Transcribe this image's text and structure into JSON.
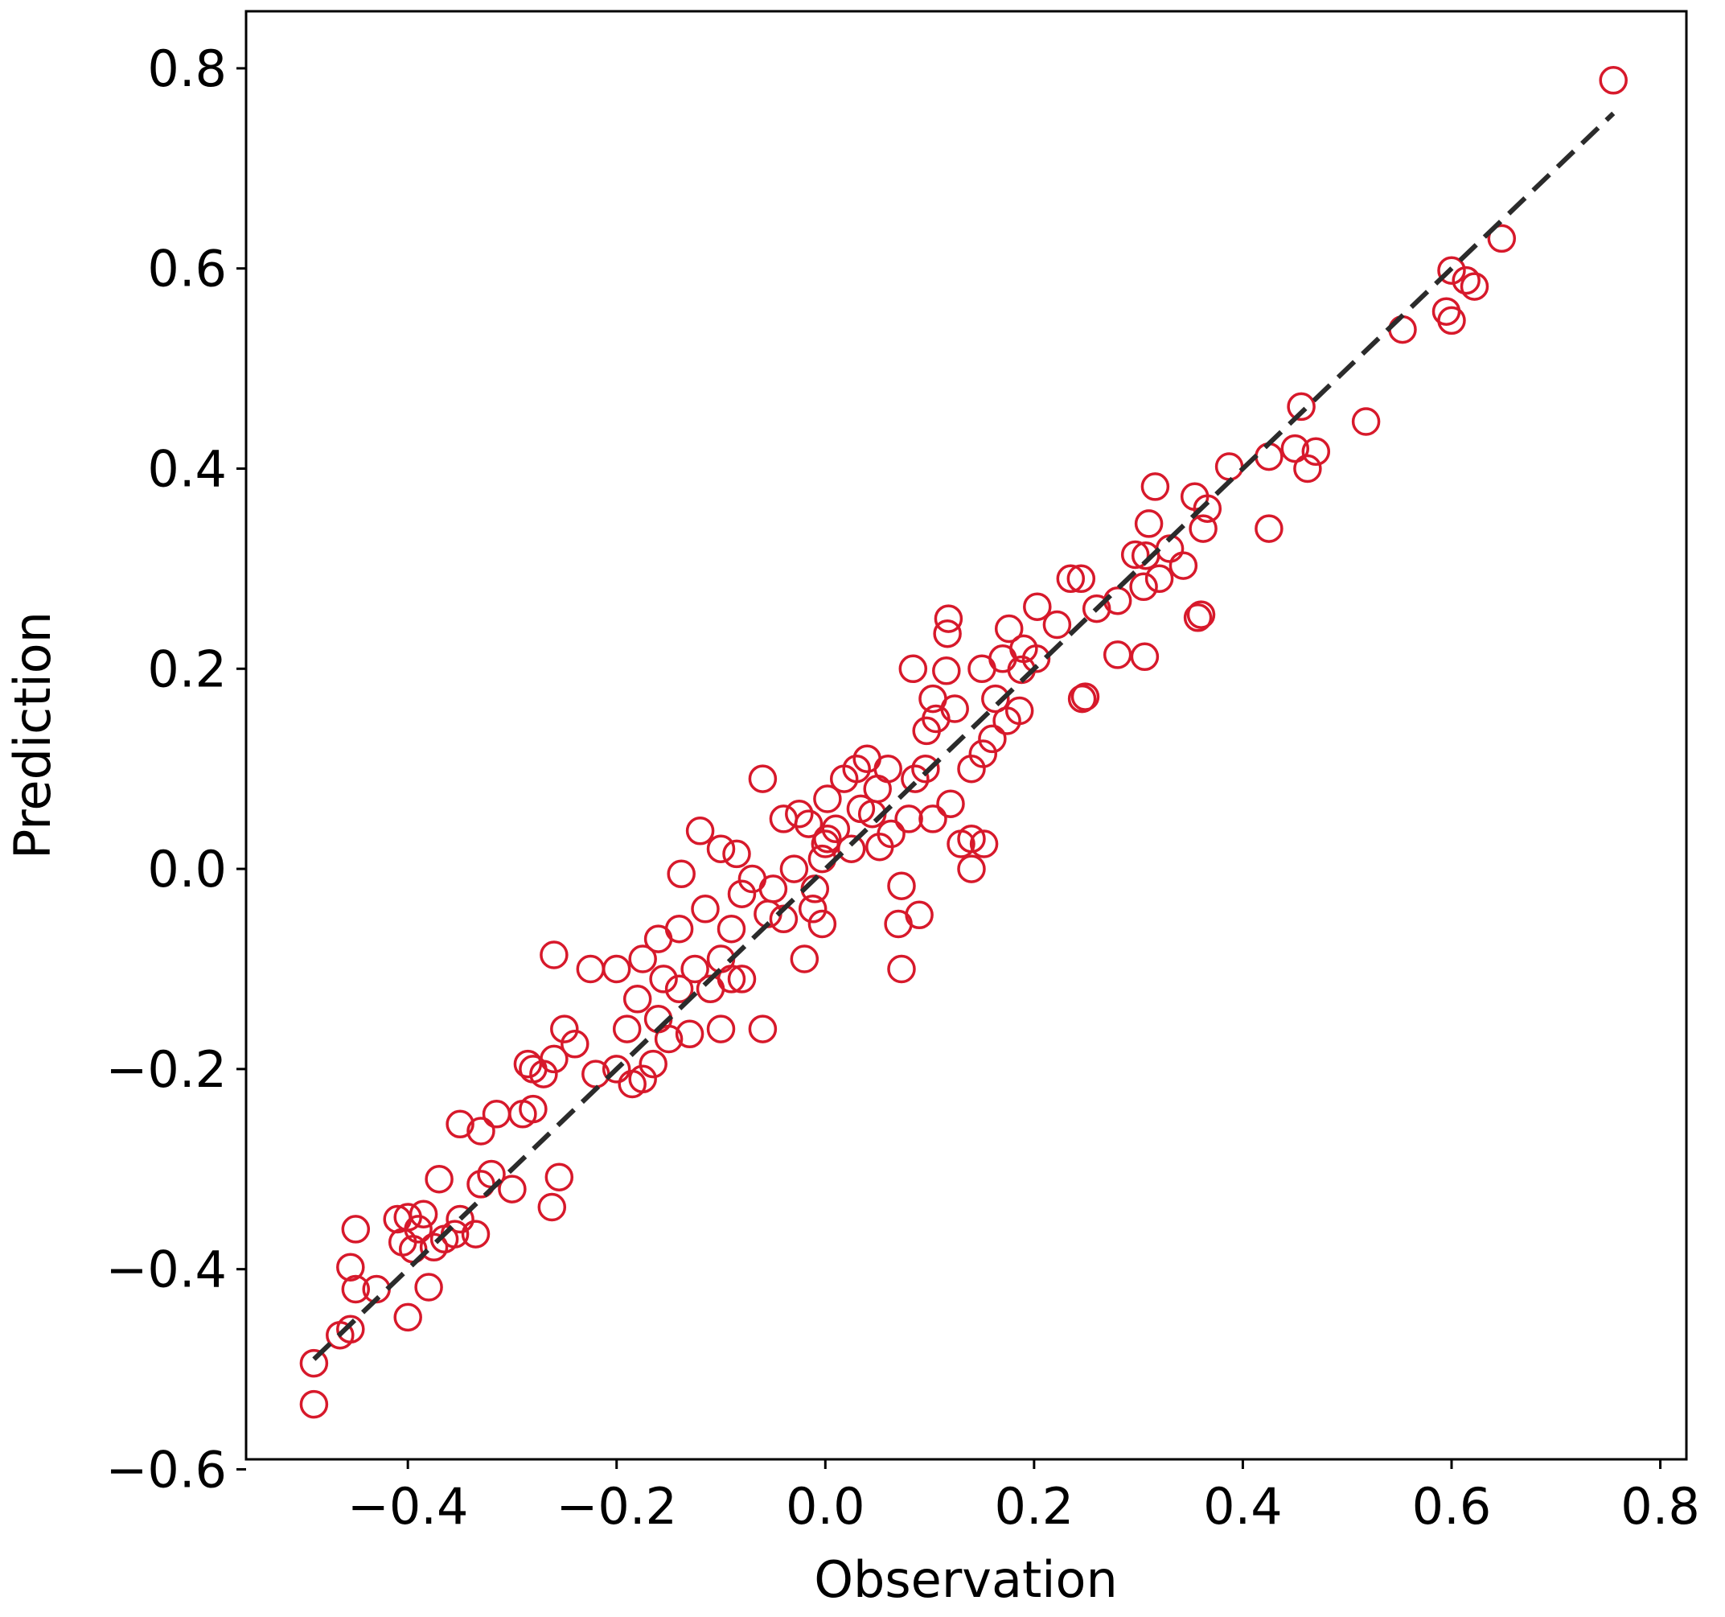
{
  "chart_data": {
    "type": "scatter",
    "title": "",
    "xlabel": "Observation",
    "ylabel": "Prediction",
    "xlim": [
      -0.555,
      0.825
    ],
    "ylim": [
      -0.59,
      0.857
    ],
    "xticks": [
      -0.4,
      -0.2,
      0.0,
      0.2,
      0.4,
      0.6,
      0.8
    ],
    "xtick_labels": [
      "−0.4",
      "−0.2",
      "0.0",
      "0.2",
      "0.4",
      "0.6",
      "0.8"
    ],
    "yticks": [
      -0.6,
      -0.4,
      -0.2,
      0.0,
      0.2,
      0.4,
      0.6,
      0.8
    ],
    "ytick_labels": [
      "−0.6",
      "−0.4",
      "−0.2",
      "0.0",
      "0.2",
      "0.4",
      "0.6",
      "0.8"
    ],
    "grid": false,
    "legend": "none",
    "marker_color": "#d7192b",
    "line_color": "#2b2b2b",
    "reference_line": {
      "style": "dashed",
      "x": [
        -0.49,
        0.755
      ],
      "y": [
        -0.49,
        0.755
      ]
    },
    "series": [
      {
        "marker": "open-circle",
        "points": [
          [
            0.755,
            0.788
          ],
          [
            0.648,
            0.63
          ],
          [
            0.622,
            0.582
          ],
          [
            0.6,
            0.598
          ],
          [
            0.595,
            0.557
          ],
          [
            0.6,
            0.548
          ],
          [
            0.614,
            0.588
          ],
          [
            0.553,
            0.539
          ],
          [
            0.518,
            0.447
          ],
          [
            0.456,
            0.462
          ],
          [
            0.47,
            0.417
          ],
          [
            0.462,
            0.4
          ],
          [
            0.45,
            0.42
          ],
          [
            0.425,
            0.412
          ],
          [
            0.425,
            0.34
          ],
          [
            0.387,
            0.402
          ],
          [
            0.366,
            0.36
          ],
          [
            0.362,
            0.34
          ],
          [
            0.354,
            0.372
          ],
          [
            0.36,
            0.254
          ],
          [
            0.357,
            0.251
          ],
          [
            0.343,
            0.303
          ],
          [
            0.316,
            0.382
          ],
          [
            0.31,
            0.345
          ],
          [
            0.307,
            0.313
          ],
          [
            0.297,
            0.314
          ],
          [
            0.33,
            0.32
          ],
          [
            0.32,
            0.29
          ],
          [
            0.305,
            0.282
          ],
          [
            0.306,
            0.212
          ],
          [
            0.28,
            0.268
          ],
          [
            0.26,
            0.26
          ],
          [
            0.245,
            0.29
          ],
          [
            0.235,
            0.29
          ],
          [
            0.222,
            0.244
          ],
          [
            0.203,
            0.262
          ],
          [
            0.249,
            0.172
          ],
          [
            0.246,
            0.17
          ],
          [
            0.28,
            0.214
          ],
          [
            0.202,
            0.21
          ],
          [
            0.19,
            0.22
          ],
          [
            0.176,
            0.24
          ],
          [
            0.17,
            0.21
          ],
          [
            0.188,
            0.199
          ],
          [
            0.186,
            0.158
          ],
          [
            0.174,
            0.148
          ],
          [
            0.163,
            0.17
          ],
          [
            0.15,
            0.2
          ],
          [
            0.118,
            0.25
          ],
          [
            0.117,
            0.235
          ],
          [
            0.116,
            0.198
          ],
          [
            0.16,
            0.13
          ],
          [
            0.151,
            0.115
          ],
          [
            0.14,
            0.1
          ],
          [
            0.124,
            0.16
          ],
          [
            0.106,
            0.15
          ],
          [
            0.103,
            0.17
          ],
          [
            0.097,
            0.138
          ],
          [
            0.096,
            0.1
          ],
          [
            0.086,
            0.09
          ],
          [
            0.084,
            0.2
          ],
          [
            0.12,
            0.065
          ],
          [
            0.103,
            0.05
          ],
          [
            0.14,
            0.03
          ],
          [
            0.13,
            0.025
          ],
          [
            0.152,
            0.025
          ],
          [
            0.14,
            0.0
          ],
          [
            0.063,
            0.035
          ],
          [
            0.04,
            0.11
          ],
          [
            0.03,
            0.1
          ],
          [
            0.034,
            0.06
          ],
          [
            0.045,
            0.055
          ],
          [
            0.052,
            0.022
          ],
          [
            0.025,
            0.02
          ],
          [
            0.018,
            0.09
          ],
          [
            0.002,
            0.07
          ],
          [
            0.01,
            0.04
          ],
          [
            0.0,
            0.025
          ],
          [
            -0.003,
            0.01
          ],
          [
            -0.016,
            0.045
          ],
          [
            -0.025,
            0.055
          ],
          [
            -0.04,
            0.05
          ],
          [
            -0.06,
            0.09
          ],
          [
            -0.01,
            -0.02
          ],
          [
            -0.012,
            -0.04
          ],
          [
            -0.003,
            -0.055
          ],
          [
            -0.04,
            -0.05
          ],
          [
            -0.055,
            -0.045
          ],
          [
            -0.02,
            -0.09
          ],
          [
            -0.06,
            -0.16
          ],
          [
            0.073,
            -0.017
          ],
          [
            0.07,
            -0.055
          ],
          [
            0.09,
            -0.046
          ],
          [
            0.073,
            -0.1
          ],
          [
            -0.08,
            -0.025
          ],
          [
            -0.09,
            -0.06
          ],
          [
            -0.1,
            -0.09
          ],
          [
            -0.115,
            -0.04
          ],
          [
            -0.12,
            0.038
          ],
          [
            -0.1,
            0.02
          ],
          [
            -0.085,
            0.015
          ],
          [
            -0.07,
            -0.01
          ],
          [
            -0.125,
            -0.1
          ],
          [
            -0.14,
            -0.12
          ],
          [
            -0.138,
            -0.005
          ],
          [
            -0.14,
            -0.06
          ],
          [
            -0.16,
            -0.07
          ],
          [
            -0.155,
            -0.11
          ],
          [
            -0.175,
            -0.09
          ],
          [
            -0.18,
            -0.13
          ],
          [
            -0.16,
            -0.15
          ],
          [
            -0.15,
            -0.17
          ],
          [
            -0.13,
            -0.165
          ],
          [
            -0.1,
            -0.16
          ],
          [
            -0.09,
            -0.11
          ],
          [
            -0.08,
            -0.11
          ],
          [
            -0.19,
            -0.16
          ],
          [
            -0.2,
            -0.2
          ],
          [
            -0.185,
            -0.215
          ],
          [
            -0.175,
            -0.21
          ],
          [
            -0.165,
            -0.195
          ],
          [
            -0.225,
            -0.1
          ],
          [
            -0.2,
            -0.1
          ],
          [
            -0.26,
            -0.086
          ],
          [
            -0.25,
            -0.16
          ],
          [
            -0.24,
            -0.175
          ],
          [
            -0.22,
            -0.205
          ],
          [
            -0.26,
            -0.19
          ],
          [
            -0.27,
            -0.205
          ],
          [
            -0.28,
            -0.2
          ],
          [
            -0.285,
            -0.195
          ],
          [
            -0.28,
            -0.24
          ],
          [
            -0.29,
            -0.245
          ],
          [
            -0.315,
            -0.245
          ],
          [
            -0.35,
            -0.255
          ],
          [
            -0.33,
            -0.262
          ],
          [
            -0.255,
            -0.308
          ],
          [
            -0.262,
            -0.338
          ],
          [
            -0.3,
            -0.32
          ],
          [
            -0.32,
            -0.305
          ],
          [
            -0.33,
            -0.315
          ],
          [
            -0.37,
            -0.31
          ],
          [
            -0.335,
            -0.365
          ],
          [
            -0.35,
            -0.35
          ],
          [
            -0.355,
            -0.365
          ],
          [
            -0.365,
            -0.37
          ],
          [
            -0.375,
            -0.378
          ],
          [
            -0.385,
            -0.345
          ],
          [
            -0.39,
            -0.36
          ],
          [
            -0.4,
            -0.348
          ],
          [
            -0.41,
            -0.35
          ],
          [
            -0.405,
            -0.373
          ],
          [
            -0.395,
            -0.38
          ],
          [
            -0.38,
            -0.418
          ],
          [
            -0.4,
            -0.448
          ],
          [
            -0.43,
            -0.42
          ],
          [
            -0.45,
            -0.36
          ],
          [
            -0.455,
            -0.398
          ],
          [
            -0.45,
            -0.42
          ],
          [
            -0.455,
            -0.46
          ],
          [
            -0.465,
            -0.466
          ],
          [
            -0.49,
            -0.494
          ],
          [
            -0.49,
            -0.535
          ],
          [
            0.002,
            0.03
          ],
          [
            -0.03,
            0.0
          ],
          [
            0.05,
            0.08
          ],
          [
            0.06,
            0.1
          ],
          [
            0.08,
            0.05
          ],
          [
            -0.05,
            -0.02
          ],
          [
            -0.11,
            -0.12
          ]
        ]
      }
    ]
  }
}
